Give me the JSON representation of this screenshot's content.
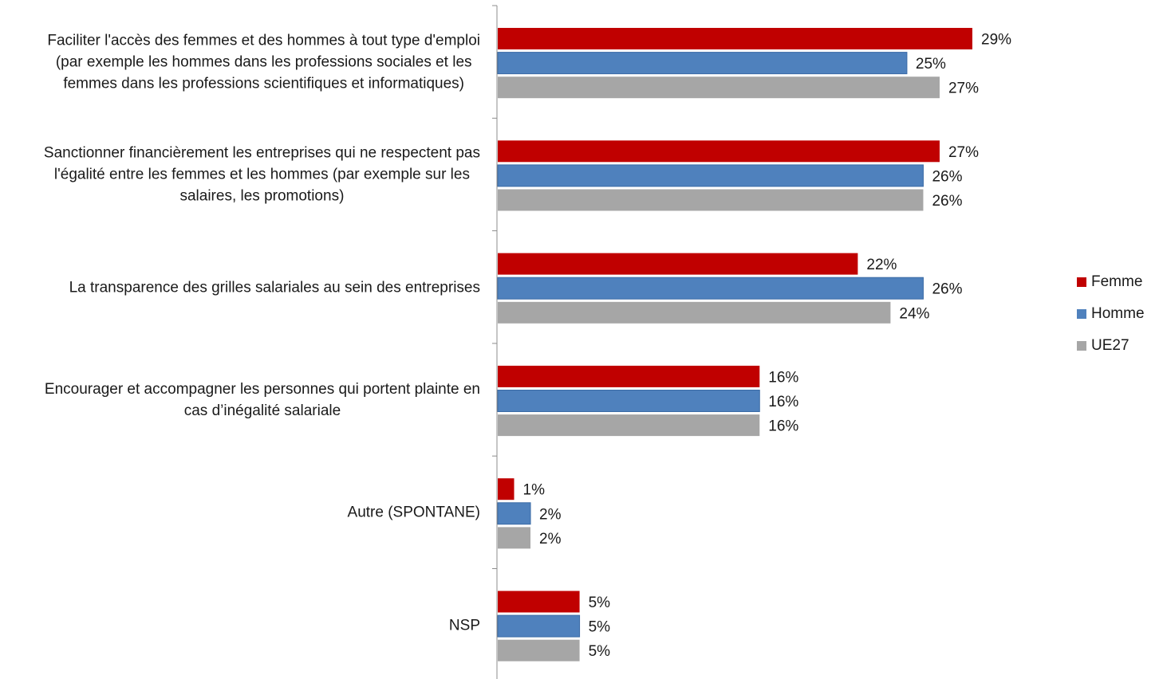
{
  "chart_data": {
    "type": "bar",
    "orientation": "horizontal",
    "categories": [
      [
        "Faciliter l'accès des femmes et des hommes à tout type d'emploi",
        "(par exemple les hommes dans les professions sociales et les",
        "femmes dans les professions scientifiques et informatiques)"
      ],
      [
        "Sanctionner financièrement les entreprises qui ne respectent pas",
        "l'égalité entre les femmes et les hommes (par exemple sur les",
        "salaires, les promotions)"
      ],
      [
        "La transparence des grilles salariales au sein des entreprises"
      ],
      [
        "Encourager et accompagner les personnes qui portent plainte en",
        "cas d’inégalité salariale"
      ],
      [
        "Autre (SPONTANE)"
      ],
      [
        "NSP"
      ]
    ],
    "series": [
      {
        "name": "Femme",
        "color": "#c00000",
        "values": [
          29,
          27,
          22,
          16,
          1,
          5
        ]
      },
      {
        "name": "Homme",
        "color": "#4f81bd",
        "values": [
          25,
          26,
          26,
          16,
          2,
          5
        ]
      },
      {
        "name": "UE27",
        "color": "#a6a6a6",
        "values": [
          27,
          26,
          24,
          16,
          2,
          5
        ]
      }
    ],
    "value_suffix": "%",
    "xlim": [
      0,
      29
    ],
    "grid": false,
    "legend_position": "right"
  }
}
